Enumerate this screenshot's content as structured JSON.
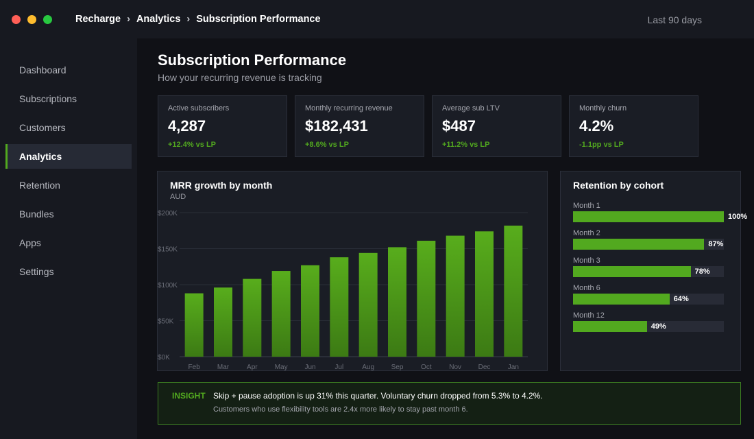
{
  "window": {
    "controls": [
      {
        "name": "close",
        "color": "#ff5f57"
      },
      {
        "name": "minimize",
        "color": "#febc2e"
      },
      {
        "name": "maximize",
        "color": "#28c840"
      }
    ]
  },
  "breadcrumb": [
    "Recharge",
    "Analytics",
    "Subscription Performance"
  ],
  "breadcrumb_separator": "›",
  "date_range": "Last 90 days",
  "sidebar": {
    "items": [
      {
        "label": "Dashboard",
        "active": false
      },
      {
        "label": "Subscriptions",
        "active": false
      },
      {
        "label": "Customers",
        "active": false
      },
      {
        "label": "Analytics",
        "active": true
      },
      {
        "label": "Retention",
        "active": false
      },
      {
        "label": "Bundles",
        "active": false
      },
      {
        "label": "Apps",
        "active": false
      },
      {
        "label": "Settings",
        "active": false
      }
    ]
  },
  "page": {
    "title": "Subscription Performance",
    "subtitle": "How your recurring revenue is tracking"
  },
  "kpis": [
    {
      "label": "Active subscribers",
      "value": "4,287",
      "delta": "+12.4% vs LP"
    },
    {
      "label": "Monthly recurring revenue",
      "value": "$182,431",
      "delta": "+8.6% vs LP"
    },
    {
      "label": "Average sub LTV",
      "value": "$487",
      "delta": "+11.2% vs LP"
    },
    {
      "label": "Monthly churn",
      "value": "4.2%",
      "delta": "-1.1pp vs LP"
    }
  ],
  "colors": {
    "accent": "#52a91f",
    "background": "#101116",
    "panel": "#1a1d25"
  },
  "chart_data": [
    {
      "type": "bar",
      "title": "MRR growth by month",
      "subtitle": "AUD",
      "categories": [
        "Feb",
        "Mar",
        "Apr",
        "May",
        "Jun",
        "Jul",
        "Aug",
        "Sep",
        "Oct",
        "Nov",
        "Dec",
        "Jan"
      ],
      "values": [
        88000,
        96000,
        108000,
        119000,
        127000,
        138000,
        144000,
        152000,
        161000,
        168000,
        174000,
        182000
      ],
      "ylim": [
        0,
        200000
      ],
      "yticks": [
        0,
        50000,
        100000,
        150000,
        200000
      ],
      "ytick_labels": [
        "$0K",
        "$50K",
        "$100K",
        "$150K",
        "$200K"
      ],
      "grid": true,
      "legend": "none"
    },
    {
      "type": "bar",
      "orientation": "horizontal",
      "title": "Retention by cohort",
      "categories": [
        "Month 1",
        "Month 2",
        "Month 3",
        "Month 6",
        "Month 12"
      ],
      "values": [
        100,
        87,
        78,
        64,
        49
      ],
      "value_labels": [
        "100%",
        "87%",
        "78%",
        "64%",
        "49%"
      ],
      "xlim": [
        0,
        100
      ]
    }
  ],
  "insight": {
    "tag": "INSIGHT",
    "text": "Skip + pause adoption is up 31% this quarter. Voluntary churn dropped from 5.3% to 4.2%.",
    "subtext": "Customers who use flexibility tools are 2.4x more likely to stay past month 6."
  }
}
